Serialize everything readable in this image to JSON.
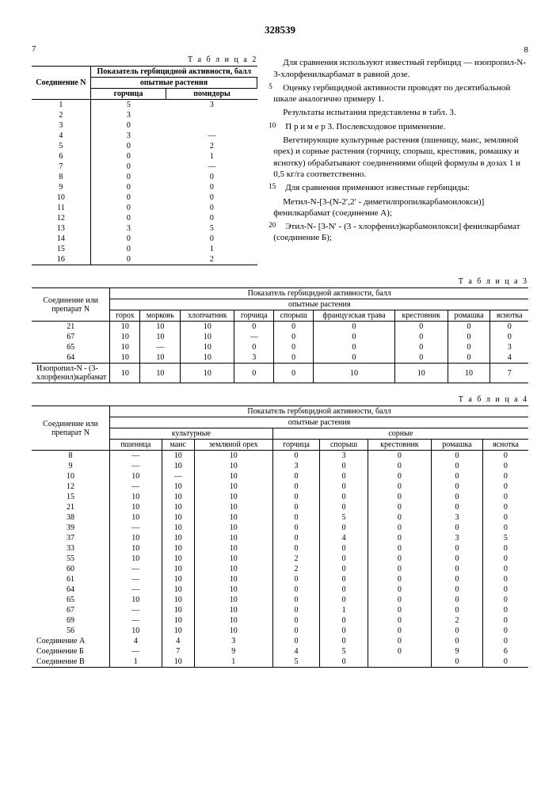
{
  "doc_number": "328539",
  "page_left": "7",
  "page_right": "8",
  "table2": {
    "label": "Т а б л и ц а  2",
    "col_main": "Соединение N",
    "col_group": "Показатель гербицидной активности, балл",
    "col_sub": "опытные растения",
    "cols": [
      "горчица",
      "помидоры"
    ],
    "rows": [
      [
        "1",
        "5",
        "3"
      ],
      [
        "2",
        "3",
        ""
      ],
      [
        "3",
        "0",
        ""
      ],
      [
        "4",
        "3",
        "—"
      ],
      [
        "5",
        "0",
        "2"
      ],
      [
        "6",
        "0",
        "1"
      ],
      [
        "7",
        "0",
        "—"
      ],
      [
        "8",
        "0",
        "0"
      ],
      [
        "9",
        "0",
        "0"
      ],
      [
        "10",
        "0",
        "0"
      ],
      [
        "11",
        "0",
        "0"
      ],
      [
        "12",
        "0",
        "0"
      ],
      [
        "13",
        "3",
        "5"
      ],
      [
        "14",
        "0",
        "0"
      ],
      [
        "15",
        "0",
        "1"
      ],
      [
        "16",
        "0",
        "2"
      ]
    ]
  },
  "right_text": {
    "p1": "Для сравнения используют известный гербицид — изопропил-N-3-хлорфенилкарбамат в равной дозе.",
    "p2": "Оценку гербицидной активности проводят по десятибальной шкале аналогично примеру 1.",
    "p3": "Результаты испытания представлены в табл. 3.",
    "p4": "П р и м е р 3. Послевсходовое применение.",
    "p5": "Вегетирующие культурные растения (пшеницу, маис, земляной орех) и сорные растения (горчицу, спорыш, крестовик, ромашку и яснотку) обрабатывают соединениями общей формулы в дозах 1 и 0,5 кг/га соответственно.",
    "p6": "Для сравнения применяют известные гербициды:",
    "p7": "Метил-N-[3-(N-2′,2′ - диметилпропилкарбамоилокси)] фенилкарбамат (соединение А);",
    "p8": "Этил-N- [3-N′ - (3 - хлорфенил)карбамоилокси] фенилкарбамат (соединение Б);",
    "ln5": "5",
    "ln10": "10",
    "ln15": "15",
    "ln20": "20"
  },
  "table3": {
    "label": "Т а б л и ц а  3",
    "col_main": "Соединение или препарат N",
    "col_group": "Показатель гербицидной активности, балл",
    "col_sub": "опытные растения",
    "cols": [
      "горох",
      "морковь",
      "хлопчатник",
      "горчица",
      "спорыш",
      "французская трава",
      "крестовник",
      "ромашка",
      "яснотка"
    ],
    "rows": [
      [
        "21",
        "10",
        "10",
        "10",
        "0",
        "0",
        "0",
        "0",
        "0",
        "0"
      ],
      [
        "67",
        "10",
        "10",
        "10",
        "—",
        "0",
        "0",
        "0",
        "0",
        "0"
      ],
      [
        "65",
        "10",
        "—",
        "10",
        "0",
        "0",
        "0",
        "0",
        "0",
        "3"
      ],
      [
        "64",
        "10",
        "10",
        "10",
        "3",
        "0",
        "0",
        "0",
        "0",
        "4"
      ]
    ],
    "footer_row": [
      "Изопропил-N - (3-хлорфенил)карбамат",
      "10",
      "10",
      "10",
      "0",
      "0",
      "10",
      "10",
      "10",
      "7"
    ]
  },
  "table4": {
    "label": "Т а б л и ц а  4",
    "col_main": "Соединение или препарат N",
    "col_group": "Показатель гербицидной активности, балл",
    "col_sub": "опытные растения",
    "grp1": "культурные",
    "grp2": "сорные",
    "cols": [
      "пшеница",
      "маис",
      "земляной орех",
      "горчица",
      "спорыш",
      "крестовник",
      "ромашка",
      "яснотка"
    ],
    "rows": [
      [
        "8",
        "—",
        "10",
        "10",
        "0",
        "3",
        "0",
        "0",
        "0"
      ],
      [
        "9",
        "—",
        "10",
        "10",
        "3",
        "0",
        "0",
        "0",
        "0"
      ],
      [
        "10",
        "10",
        "—",
        "10",
        "0",
        "0",
        "0",
        "0",
        "0"
      ],
      [
        "12",
        "—",
        "10",
        "10",
        "0",
        "0",
        "0",
        "0",
        "0"
      ],
      [
        "15",
        "10",
        "10",
        "10",
        "0",
        "0",
        "0",
        "0",
        "0"
      ],
      [
        "21",
        "10",
        "10",
        "10",
        "0",
        "0",
        "0",
        "0",
        "0"
      ],
      [
        "38",
        "10",
        "10",
        "10",
        "0",
        "5",
        "0",
        "3",
        "0"
      ],
      [
        "39",
        "—",
        "10",
        "10",
        "0",
        "0",
        "0",
        "0",
        "0"
      ],
      [
        "37",
        "10",
        "10",
        "10",
        "0",
        "4",
        "0",
        "3",
        "5"
      ],
      [
        "33",
        "10",
        "10",
        "10",
        "0",
        "0",
        "0",
        "0",
        "0"
      ],
      [
        "55",
        "10",
        "10",
        "10",
        "2",
        "0",
        "0",
        "0",
        "0"
      ],
      [
        "60",
        "—",
        "10",
        "10",
        "2",
        "0",
        "0",
        "0",
        "0"
      ],
      [
        "61",
        "—",
        "10",
        "10",
        "0",
        "0",
        "0",
        "0",
        "0"
      ],
      [
        "64",
        "—",
        "10",
        "10",
        "0",
        "0",
        "0",
        "0",
        "0"
      ],
      [
        "65",
        "10",
        "10",
        "10",
        "0",
        "0",
        "0",
        "0",
        "0"
      ],
      [
        "67",
        "—",
        "10",
        "10",
        "0",
        "1",
        "0",
        "0",
        "0"
      ],
      [
        "69",
        "—",
        "10",
        "10",
        "0",
        "0",
        "0",
        "2",
        "0"
      ],
      [
        "56",
        "10",
        "10",
        "10",
        "0",
        "0",
        "0",
        "0",
        "0"
      ],
      [
        "Соединение А",
        "4",
        "4",
        "3",
        "0",
        "0",
        "0",
        "0",
        "0"
      ],
      [
        "Соединение Б",
        "—",
        "7",
        "9",
        "4",
        "5",
        "0",
        "9",
        "6"
      ],
      [
        "Соединение В",
        "1",
        "10",
        "1",
        "5",
        "0",
        "",
        "0",
        "0"
      ]
    ]
  }
}
